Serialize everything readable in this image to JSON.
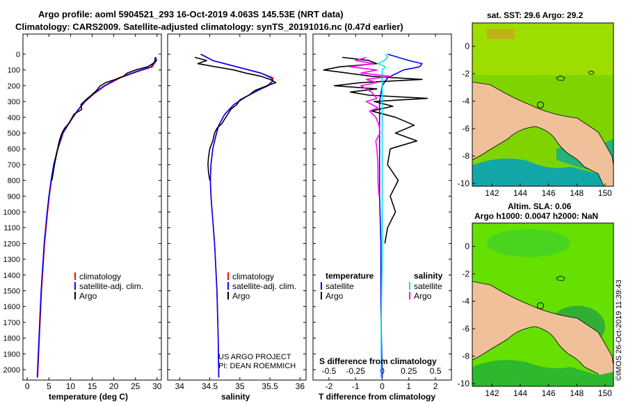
{
  "title_line1": "Argo profile: aoml 5904521_293 16-Oct-2019 4.063S 145.53E (NRT data)",
  "title_line2": "Climatology: CARS2009. Satellite-adjusted climatology: synTS_20191016.nc (0.47d earlier)",
  "depth_ticks": [
    0,
    100,
    200,
    300,
    400,
    500,
    600,
    700,
    800,
    900,
    1000,
    1100,
    1200,
    1300,
    1400,
    1500,
    1600,
    1700,
    1800,
    1900,
    2000
  ],
  "colors": {
    "climatology": "#ff0000",
    "satellite": "#0000ff",
    "argo": "#000000",
    "sat_salinity": "#00e5e5",
    "argo_salinity": "#ff00ff",
    "land": "#f0c09a"
  },
  "chart_data": [
    {
      "type": "line",
      "name": "temperature",
      "xlabel": "temperature (deg C)",
      "xlim": [
        -1,
        31
      ],
      "ylim": [
        2060,
        0
      ],
      "xticks": [
        0,
        5,
        10,
        15,
        20,
        25,
        30
      ],
      "legend": [
        "climatology",
        "satellite-adj. clim.",
        "Argo"
      ],
      "series": [
        {
          "name": "climatology",
          "depth": [
            20,
            50,
            80,
            110,
            150,
            200,
            250,
            300,
            350,
            400,
            450,
            500,
            600,
            700,
            800,
            900,
            1000,
            1200,
            1500,
            1800,
            2050
          ],
          "values": [
            29.8,
            29.6,
            28.9,
            25.5,
            21.5,
            18.0,
            15.5,
            13.4,
            11.9,
            10.6,
            9.4,
            8.3,
            7.1,
            6.2,
            5.6,
            5.1,
            4.7,
            4.0,
            3.3,
            2.8,
            2.4
          ]
        },
        {
          "name": "satellite-adj. clim.",
          "depth": [
            20,
            50,
            80,
            110,
            150,
            200,
            250,
            300,
            350,
            400,
            450,
            500,
            600,
            700,
            800,
            900,
            1000,
            1200,
            1500,
            1800,
            2050
          ],
          "values": [
            29.6,
            29.4,
            28.6,
            25.2,
            21.2,
            17.8,
            15.3,
            13.3,
            11.8,
            10.5,
            9.3,
            8.2,
            7.0,
            6.1,
            5.5,
            5.0,
            4.6,
            3.9,
            3.2,
            2.7,
            2.3
          ]
        },
        {
          "name": "Argo",
          "depth": [
            20,
            40,
            60,
            80,
            100,
            120,
            140,
            160,
            180,
            200,
            230,
            260,
            290,
            320,
            350,
            380,
            410,
            440,
            470,
            500,
            550,
            600,
            700,
            800
          ],
          "values": [
            29.5,
            29.9,
            29.0,
            27.8,
            25.0,
            23.1,
            22.2,
            20.4,
            18.1,
            16.9,
            16.0,
            14.8,
            13.5,
            12.4,
            12.6,
            10.8,
            10.2,
            9.6,
            8.6,
            8.0,
            7.4,
            7.0,
            6.3,
            5.7
          ]
        }
      ]
    },
    {
      "type": "line",
      "name": "salinity",
      "xlabel": "salinity",
      "xlim": [
        33.8,
        36.1
      ],
      "ylim": [
        2060,
        0
      ],
      "xticks": [
        34,
        34.5,
        35,
        35.5,
        36
      ],
      "xticklabels": [
        "34",
        "34.5",
        "35",
        "35.5",
        "36"
      ],
      "legend": [
        "climatology",
        "satellite-adj. clim.",
        "Argo"
      ],
      "series": [
        {
          "name": "climatology",
          "depth": [
            0,
            40,
            80,
            120,
            150,
            170,
            200,
            230,
            270,
            320,
            380,
            450,
            520,
            600,
            700,
            800,
            900,
            1000,
            1200,
            1500,
            1800,
            2050
          ],
          "values": [
            34.35,
            34.55,
            34.95,
            35.35,
            35.55,
            35.55,
            35.45,
            35.3,
            35.1,
            34.9,
            34.75,
            34.65,
            34.6,
            34.55,
            34.52,
            34.51,
            34.52,
            34.54,
            34.58,
            34.62,
            34.64,
            34.65
          ]
        },
        {
          "name": "satellite-adj. clim.",
          "depth": [
            0,
            40,
            80,
            120,
            150,
            170,
            200,
            230,
            270,
            320,
            380,
            450,
            520,
            600,
            700,
            800,
            900,
            1000,
            1200,
            1500,
            1800,
            2050
          ],
          "values": [
            34.35,
            34.55,
            34.95,
            35.35,
            35.52,
            35.55,
            35.47,
            35.3,
            35.1,
            34.9,
            34.75,
            34.65,
            34.6,
            34.55,
            34.52,
            34.51,
            34.52,
            34.54,
            34.58,
            34.62,
            34.64,
            34.65
          ]
        },
        {
          "name": "Argo",
          "depth": [
            20,
            40,
            60,
            80,
            100,
            120,
            140,
            160,
            180,
            200,
            230,
            260,
            290,
            320,
            350,
            380,
            410,
            440,
            470,
            500,
            550,
            600,
            650,
            700,
            750,
            800
          ],
          "values": [
            34.25,
            34.45,
            34.3,
            34.6,
            34.9,
            35.1,
            35.35,
            35.5,
            35.6,
            35.45,
            35.25,
            35.15,
            35.0,
            34.95,
            34.85,
            34.8,
            34.75,
            34.7,
            34.62,
            34.58,
            34.55,
            34.5,
            34.48,
            34.47,
            34.48,
            34.5
          ]
        }
      ]
    },
    {
      "type": "line",
      "name": "differences",
      "xlabel": "T difference from climatology",
      "xlabel_top": "S difference from climatology",
      "xlim": [
        -2.6,
        2.6
      ],
      "ylim": [
        2060,
        0
      ],
      "xticks": [
        -2,
        -1,
        0,
        1,
        2
      ],
      "xticks_top": [
        -0.5,
        -0.25,
        0,
        0.25,
        0.5
      ],
      "xticklabels_top": [
        "-0.5",
        "-0.25",
        "0",
        "0.25",
        "0.5"
      ],
      "legend_left": [
        "temperature",
        "satellite",
        "Argo"
      ],
      "legend_right": [
        "salinity",
        "satellite",
        "Argo"
      ],
      "series": [
        {
          "name": "temperature satellite",
          "depth": [
            0,
            20,
            40,
            60,
            80,
            100,
            150,
            200,
            300,
            400,
            600,
            900,
            1200,
            1600,
            2050
          ],
          "values": [
            0.2,
            0.6,
            1.0,
            1.5,
            1.4,
            0.8,
            0.2,
            0.0,
            -0.1,
            -0.1,
            -0.1,
            -0.1,
            -0.05,
            -0.05,
            0.0
          ]
        },
        {
          "name": "temperature Argo",
          "depth": [
            20,
            40,
            60,
            80,
            100,
            120,
            140,
            160,
            180,
            200,
            220,
            240,
            260,
            280,
            300,
            330,
            360,
            400,
            450,
            500,
            550,
            600,
            700,
            800,
            900,
            1000,
            1100,
            1200
          ],
          "values": [
            -1.5,
            -0.5,
            -0.2,
            -1.6,
            -2.2,
            -1.3,
            -0.4,
            1.5,
            -0.8,
            -1.8,
            -0.2,
            -1.2,
            -0.5,
            1.7,
            -0.3,
            0.4,
            -0.4,
            0.5,
            1.2,
            0.5,
            1.3,
            0.3,
            0.2,
            0.6,
            0.3,
            0.5,
            0.2,
            0.1
          ]
        },
        {
          "name": "salinity satellite",
          "depth": [
            0,
            20,
            40,
            60,
            80,
            100,
            200,
            300,
            400,
            600,
            900,
            1300,
            1700,
            2050
          ],
          "values": [
            0.03,
            0.05,
            0.02,
            -0.04,
            0.03,
            0.0,
            0.0,
            0.0,
            0.0,
            0.0,
            0.0,
            0.0,
            -0.01,
            -0.01
          ]
        },
        {
          "name": "salinity Argo",
          "depth": [
            20,
            40,
            60,
            80,
            100,
            120,
            140,
            160,
            180,
            200,
            240,
            280,
            300,
            340,
            360,
            400,
            450,
            500,
            550,
            600,
            700,
            800,
            900
          ],
          "values": [
            -0.15,
            -0.25,
            -0.08,
            -0.3,
            -0.05,
            -0.2,
            0.08,
            -0.15,
            -0.05,
            -0.2,
            -0.1,
            -0.05,
            -0.15,
            -0.04,
            -0.12,
            -0.06,
            -0.03,
            -0.02,
            -0.06,
            -0.05,
            -0.04,
            -0.04,
            -0.03
          ]
        }
      ]
    }
  ],
  "map_sst": {
    "title": "sat. SST: 29.6 Argo: 29.2",
    "xticks": [
      "142",
      "144",
      "146",
      "148",
      "150"
    ],
    "yticks": [
      "0",
      "-2",
      "-4",
      "-6",
      "-8",
      "-10"
    ]
  },
  "map_sla": {
    "title1": "Altim. SLA: 0.06",
    "title2": "Argo h1000: 0.0047 h2000: NaN",
    "xticks": [
      "142",
      "144",
      "146",
      "148",
      "150"
    ],
    "yticks": [
      "0",
      "-2",
      "-4",
      "-6",
      "-8",
      "-10"
    ]
  },
  "credit1": "US ARGO PROJECT",
  "credit2": "PI: DEAN ROEMMICH",
  "watermark": "©IMOS 26-Oct-2019 11:39:43"
}
